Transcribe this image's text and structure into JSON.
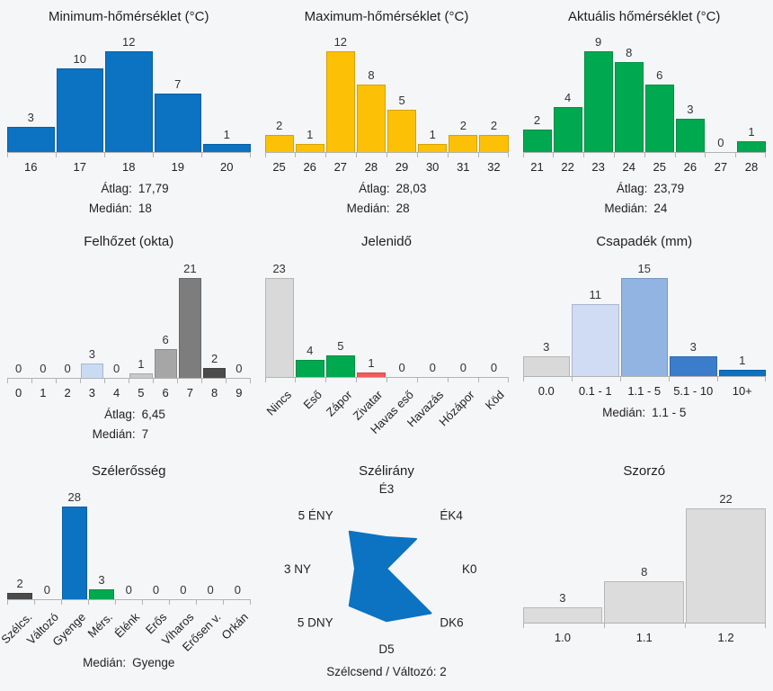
{
  "page": {
    "background": "#f5f6f8",
    "accent_blue": "#0c72c2",
    "accent_yellow": "#fcc107",
    "accent_green": "#00a94f",
    "accent_red": "#f4595b"
  },
  "chart_data": [
    {
      "type": "bar",
      "title": "Minimum-hőmérséklet (°C)",
      "categories": [
        "16",
        "17",
        "18",
        "19",
        "20"
      ],
      "values": [
        3,
        10,
        12,
        7,
        1
      ],
      "colors": [
        "#0c72c2",
        "#0c72c2",
        "#0c72c2",
        "#0c72c2",
        "#0c72c2"
      ],
      "ylim": [
        0,
        12
      ],
      "rotated_labels": false,
      "stats": [
        {
          "label": "Átlag:",
          "value": "17,79"
        },
        {
          "label": "Medián:",
          "value": "18"
        }
      ]
    },
    {
      "type": "bar",
      "title": "Maximum-hőmérséklet (°C)",
      "categories": [
        "25",
        "26",
        "27",
        "28",
        "29",
        "30",
        "31",
        "32"
      ],
      "values": [
        2,
        1,
        12,
        8,
        5,
        1,
        2,
        2
      ],
      "colors": [
        "#fcc107",
        "#fcc107",
        "#fcc107",
        "#fcc107",
        "#fcc107",
        "#fcc107",
        "#fcc107",
        "#fcc107"
      ],
      "ylim": [
        0,
        12
      ],
      "rotated_labels": false,
      "stats": [
        {
          "label": "Átlag:",
          "value": "28,03"
        },
        {
          "label": "Medián:",
          "value": "28"
        }
      ]
    },
    {
      "type": "bar",
      "title": "Aktuális hőmérséklet (°C)",
      "categories": [
        "21",
        "22",
        "23",
        "24",
        "25",
        "26",
        "27",
        "28"
      ],
      "values": [
        2,
        4,
        9,
        8,
        6,
        3,
        0,
        1
      ],
      "colors": [
        "#00a94f",
        "#00a94f",
        "#00a94f",
        "#00a94f",
        "#00a94f",
        "#00a94f",
        "#00a94f",
        "#00a94f"
      ],
      "ylim": [
        0,
        9
      ],
      "rotated_labels": false,
      "stats": [
        {
          "label": "Átlag:",
          "value": "23,79"
        },
        {
          "label": "Medián:",
          "value": "24"
        }
      ]
    },
    {
      "type": "bar",
      "title": "Felhőzet (okta)",
      "categories": [
        "0",
        "1",
        "2",
        "3",
        "4",
        "5",
        "6",
        "7",
        "8",
        "9"
      ],
      "values": [
        0,
        0,
        0,
        3,
        0,
        1,
        6,
        21,
        2,
        0
      ],
      "colors": [
        "#d9d9d9",
        "#d9d9d9",
        "#d9d9d9",
        "#c9dbf2",
        "#d9d9d9",
        "#c9c9c9",
        "#a6a6a6",
        "#7d7d7d",
        "#4b4b4b",
        "#d9d9d9"
      ],
      "ylim": [
        0,
        21
      ],
      "rotated_labels": false,
      "stats": [
        {
          "label": "Átlag:",
          "value": "6,45"
        },
        {
          "label": "Medián:",
          "value": "7"
        }
      ]
    },
    {
      "type": "bar",
      "title": "Jelenidő",
      "categories": [
        "Nincs",
        "Eső",
        "Zápor",
        "Zivatar",
        "Havas eső",
        "Havazás",
        "Hózápor",
        "Köd"
      ],
      "values": [
        23,
        4,
        5,
        1,
        0,
        0,
        0,
        0
      ],
      "colors": [
        "#d9d9d9",
        "#00a94f",
        "#00a94f",
        "#f4595b",
        "#d9d9d9",
        "#d9d9d9",
        "#d9d9d9",
        "#d9d9d9"
      ],
      "ylim": [
        0,
        23
      ],
      "rotated_labels": true,
      "stats": []
    },
    {
      "type": "bar",
      "title": "Csapadék (mm)",
      "categories": [
        "0.0",
        "0.1 - 1",
        "1.1 - 5",
        "5.1 - 10",
        "10+"
      ],
      "values": [
        3,
        11,
        15,
        3,
        1
      ],
      "colors": [
        "#d9d9d9",
        "#cfdcf3",
        "#92b4e3",
        "#3c7dcb",
        "#0c72c2"
      ],
      "ylim": [
        0,
        15
      ],
      "rotated_labels": false,
      "stats": [
        {
          "label": "Medián:",
          "value": "1.1 - 5"
        }
      ]
    },
    {
      "type": "bar",
      "title": "Szélerősség",
      "categories": [
        "Szélcs.",
        "Változó",
        "Gyenge",
        "Mérs.",
        "Élénk",
        "Erős",
        "Viharos",
        "Erősen v.",
        "Orkán"
      ],
      "values": [
        2,
        0,
        28,
        3,
        0,
        0,
        0,
        0,
        0
      ],
      "colors": [
        "#4b4b4b",
        "#d9d9d9",
        "#0c72c2",
        "#00a94f",
        "#d9d9d9",
        "#d9d9d9",
        "#d9d9d9",
        "#d9d9d9",
        "#d9d9d9"
      ],
      "ylim": [
        0,
        28
      ],
      "rotated_labels": true,
      "stats": [
        {
          "label": "Medián:",
          "value": "Gyenge"
        }
      ]
    },
    {
      "type": "radar",
      "title": "Szélirány",
      "directions": [
        "É",
        "ÉK",
        "K",
        "DK",
        "D",
        "DNY",
        "NY",
        "ÉNY"
      ],
      "values": [
        3,
        4,
        0,
        6,
        5,
        5,
        3,
        5
      ],
      "labels": [
        "É3",
        "ÉK4",
        "K0",
        "DK6",
        "D5",
        "5 DNY",
        "3 NY",
        "5 ÉNY"
      ],
      "max": 6,
      "color": "#0c72c2",
      "footer": "Szélcsend / Változó: 2"
    },
    {
      "type": "bar",
      "title": "Szorzó",
      "categories": [
        "1.0",
        "1.1",
        "1.2"
      ],
      "values": [
        3,
        8,
        22
      ],
      "colors": [
        "#dcdcdc",
        "#dcdcdc",
        "#dcdcdc"
      ],
      "ylim": [
        0,
        22
      ],
      "rotated_labels": false,
      "stats": []
    }
  ]
}
